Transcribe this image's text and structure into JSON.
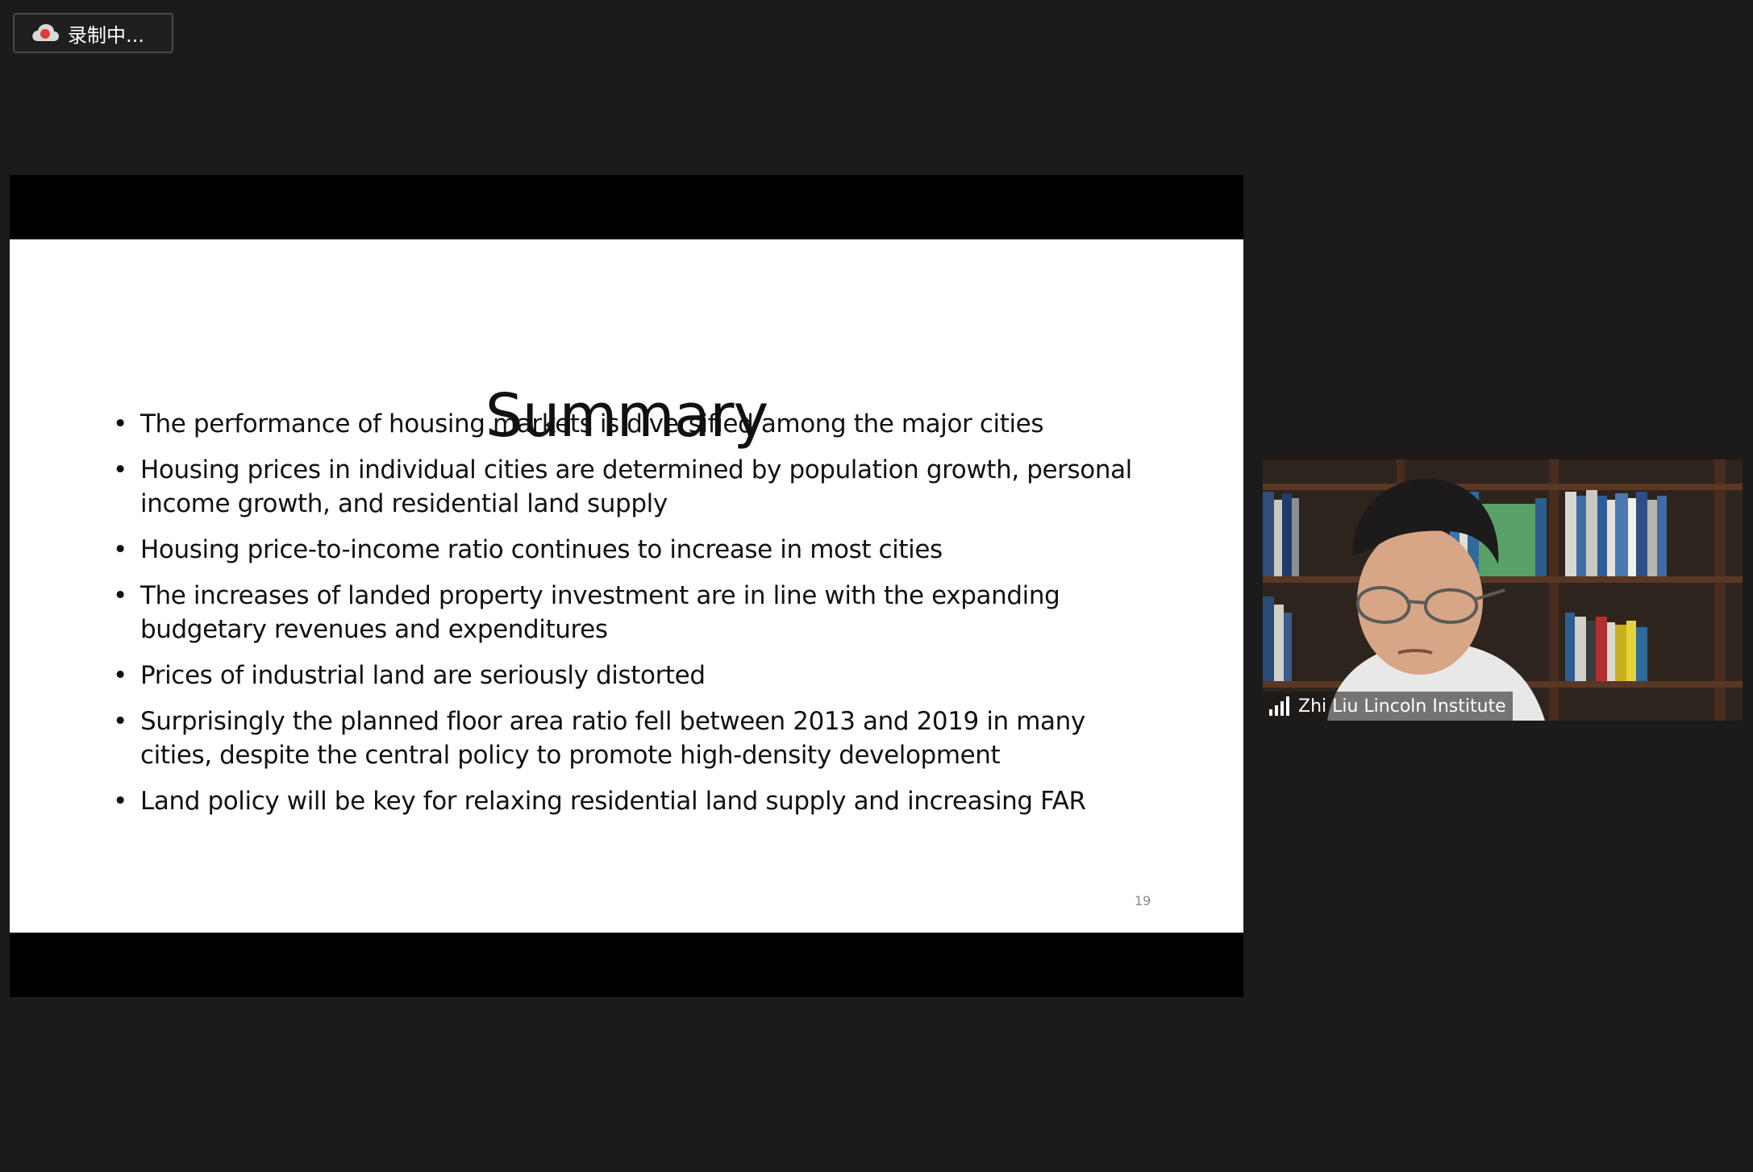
{
  "recording": {
    "label": "录制中...",
    "icon": "cloud-record-icon",
    "dot_color": "#e03a3a"
  },
  "slide": {
    "title": "Summary",
    "bullets": [
      "The performance of housing markets is diversified among the major cities",
      "Housing prices in individual cities are determined by population growth, personal income growth, and residential land supply",
      "Housing price-to-income ratio continues to increase in most cities",
      "The increases of landed property investment are in line with the expanding budgetary revenues and expenditures",
      "Prices of industrial land are seriously distorted",
      "Surprisingly the planned floor area ratio fell between 2013 and 2019 in many cities, despite the central policy to promote high-density development",
      "Land policy will be key for relaxing residential land supply and increasing FAR"
    ],
    "page_number": "19"
  },
  "participant": {
    "name": "Zhi Liu Lincoln Institute",
    "icon": "signal-strength-icon"
  }
}
